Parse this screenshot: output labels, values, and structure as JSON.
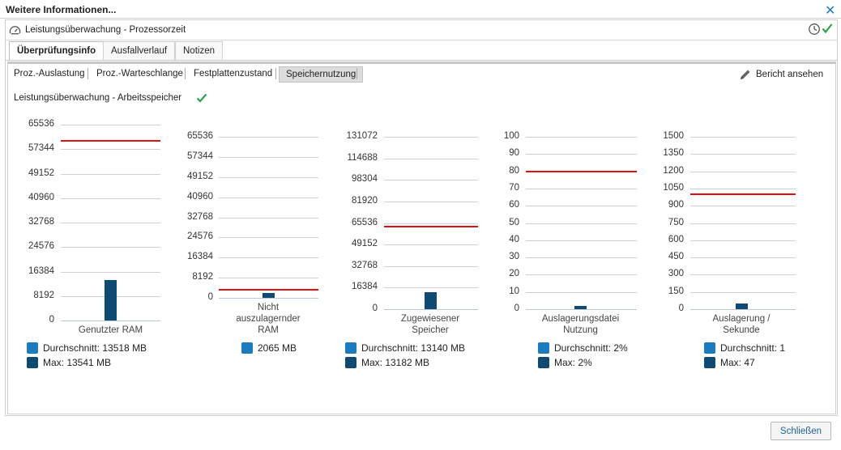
{
  "dialog": {
    "title": "Weitere Informationen...",
    "close_icon": "close-icon"
  },
  "header": {
    "title": "Leistungsüberwachung - Prozessorzeit"
  },
  "tabs": [
    {
      "label": "Überprüfungsinfo",
      "active": true
    },
    {
      "label": "Ausfallverlauf",
      "active": false
    },
    {
      "label": "Notizen",
      "active": false
    }
  ],
  "subtabs": [
    {
      "label": "Proz.-Auslastung",
      "active": false
    },
    {
      "label": "Proz.-Warteschlange",
      "active": false
    },
    {
      "label": "Festplattenzustand",
      "active": false
    },
    {
      "label": "Speichernutzung",
      "active": true
    }
  ],
  "report_button": {
    "label": "Bericht ansehen"
  },
  "section": {
    "title": "Leistungsüberwachung - Arbeitsspeicher"
  },
  "colors": {
    "bar": "#0e4a72",
    "avg": "#1a7bbf",
    "threshold": "#e01010",
    "check": "#2aa14a"
  },
  "chart_data": [
    {
      "type": "bar",
      "categories": [
        "Genutzter RAM"
      ],
      "values": [
        13518
      ],
      "ylim": [
        0,
        65536
      ],
      "ticks": [
        "65536",
        "57344",
        "49152",
        "40960",
        "32768",
        "24576",
        "16384",
        "8192",
        "0"
      ],
      "threshold": 60000,
      "legend": [
        {
          "kind": "avg",
          "label": "Durchschnitt: 13518 MB"
        },
        {
          "kind": "max",
          "label": "Max: 13541 MB"
        }
      ]
    },
    {
      "type": "bar",
      "categories": [
        "Nicht auszulagernder RAM"
      ],
      "values": [
        2065
      ],
      "ylim": [
        0,
        65536
      ],
      "ticks": [
        "65536",
        "57344",
        "49152",
        "40960",
        "32768",
        "24576",
        "16384",
        "8192",
        "0"
      ],
      "threshold": 3300,
      "legend": [
        {
          "kind": "avg",
          "label": "2065 MB"
        }
      ]
    },
    {
      "type": "bar",
      "categories": [
        "Zugewiesener Speicher"
      ],
      "values": [
        13140
      ],
      "ylim": [
        0,
        131072
      ],
      "ticks": [
        "131072",
        "114688",
        "98304",
        "81920",
        "65536",
        "49152",
        "32768",
        "16384",
        "0"
      ],
      "threshold": 63000,
      "legend": [
        {
          "kind": "avg",
          "label": "Durchschnitt: 13140 MB"
        },
        {
          "kind": "max",
          "label": "Max: 13182 MB"
        }
      ]
    },
    {
      "type": "bar",
      "categories": [
        "Auslagerungsdatei Nutzung"
      ],
      "values": [
        2
      ],
      "ylim": [
        0,
        100
      ],
      "ticks": [
        "100",
        "90",
        "80",
        "70",
        "60",
        "50",
        "40",
        "30",
        "20",
        "10",
        "0"
      ],
      "threshold": 80,
      "legend": [
        {
          "kind": "avg",
          "label": "Durchschnitt: 2%"
        },
        {
          "kind": "max",
          "label": "Max: 2%"
        }
      ]
    },
    {
      "type": "bar",
      "categories": [
        "Auslagerung / Sekunde"
      ],
      "values": [
        47
      ],
      "ylim": [
        0,
        1500
      ],
      "ticks": [
        "1500",
        "1350",
        "1200",
        "1050",
        "900",
        "750",
        "600",
        "450",
        "300",
        "150",
        "0"
      ],
      "threshold": 1000,
      "legend": [
        {
          "kind": "avg",
          "label": "Durchschnitt: 1"
        },
        {
          "kind": "max",
          "label": "Max: 47"
        }
      ]
    }
  ],
  "footer": {
    "close_label": "Schließen"
  }
}
